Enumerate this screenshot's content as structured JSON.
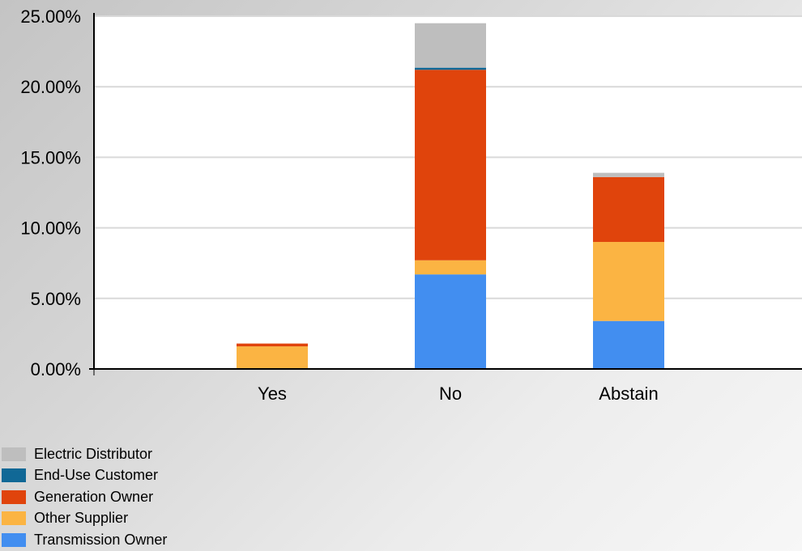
{
  "chart_data": {
    "type": "bar",
    "stacked": true,
    "title": "",
    "xlabel": "",
    "ylabel": "",
    "categories": [
      "Yes",
      "No",
      "Abstain"
    ],
    "ylim": [
      0,
      25
    ],
    "yticks": [
      "0.00%",
      "5.00%",
      "10.00%",
      "15.00%",
      "20.00%",
      "25.00%"
    ],
    "ytick_values": [
      0,
      5,
      10,
      15,
      20,
      25
    ],
    "grid": true,
    "legend_position": "bottom-left",
    "series": [
      {
        "name": "Transmission Owner",
        "color": "#428EF0",
        "values": [
          0,
          6.7,
          3.4
        ]
      },
      {
        "name": "Other Supplier",
        "color": "#FBB443",
        "values": [
          1.6,
          1.0,
          5.6
        ]
      },
      {
        "name": "Generation Owner",
        "color": "#E0440C",
        "values": [
          0.2,
          13.5,
          4.6
        ]
      },
      {
        "name": "End-Use Customer",
        "color": "#106896",
        "values": [
          0,
          0.15,
          0
        ]
      },
      {
        "name": "Electric Distributor",
        "color": "#BEBEBE",
        "values": [
          0,
          3.15,
          0.3
        ]
      }
    ],
    "legend_order": [
      "Electric Distributor",
      "End-Use Customer",
      "Generation Owner",
      "Other Supplier",
      "Transmission Owner"
    ]
  }
}
